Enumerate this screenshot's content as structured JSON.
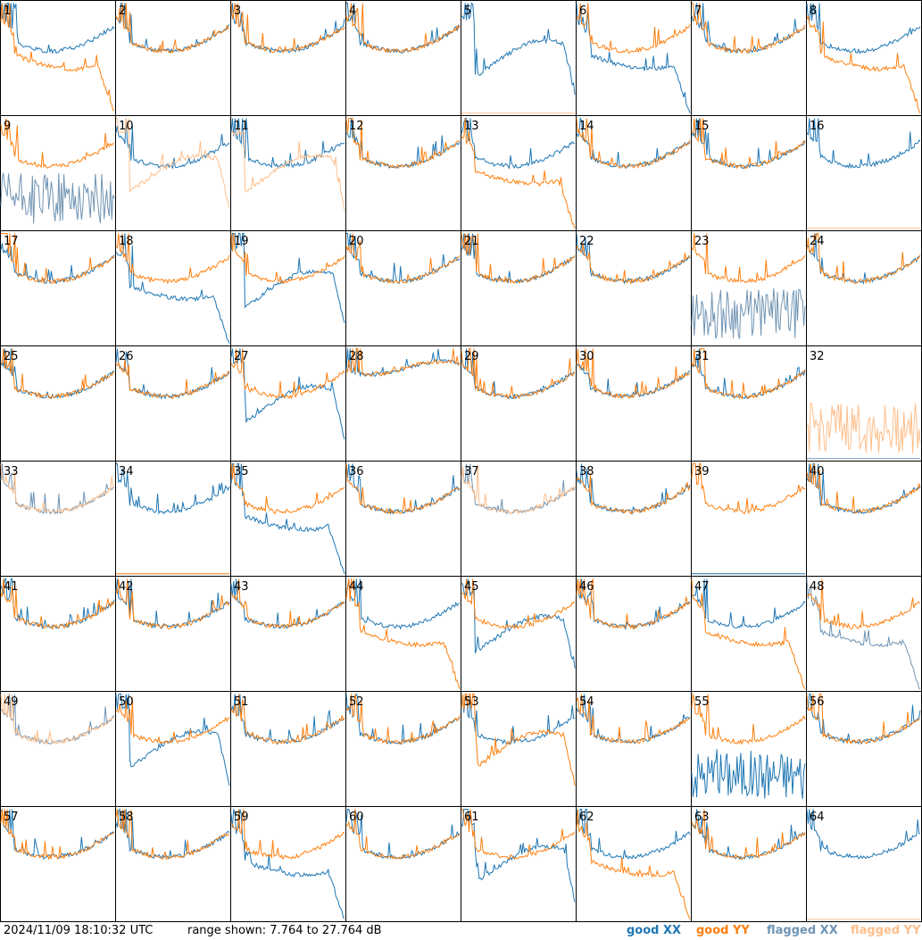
{
  "colors": {
    "good_xx": "#1f77b4",
    "good_yy": "#ff7f0e",
    "flagged_xx": "#7094b3",
    "flagged_yy": "#ffbe8a",
    "grid": "#000000",
    "background": "#ffffff"
  },
  "footer": {
    "timestamp": "2024/11/09 18:10:32 UTC",
    "range_text": "range shown: 7.764 to 27.764 dB"
  },
  "legend": [
    {
      "key": "good_xx",
      "word": "good",
      "pol": "XX"
    },
    {
      "key": "good_yy",
      "word": "good",
      "pol": "YY"
    },
    {
      "key": "flagged_xx",
      "word": "flagged",
      "pol": "XX"
    },
    {
      "key": "flagged_yy",
      "word": "flagged",
      "pol": "YY"
    }
  ],
  "chart_data": {
    "type": "line",
    "layout": "8x8 small multiples, one panel per antenna, shared y range",
    "ylim_db": [
      7.764,
      27.764
    ],
    "series_per_panel": [
      "XX",
      "YY"
    ],
    "panels": [
      {
        "id": "1",
        "shape_xx": "typical",
        "shape_yy": "droop",
        "status_xx": "good",
        "status_yy": "good"
      },
      {
        "id": "2",
        "shape_xx": "typical",
        "shape_yy": "typical",
        "status_xx": "good",
        "status_yy": "good"
      },
      {
        "id": "3",
        "shape_xx": "typical",
        "shape_yy": "typical",
        "status_xx": "good",
        "status_yy": "good"
      },
      {
        "id": "4",
        "shape_xx": "typical",
        "shape_yy": "typical",
        "status_xx": "good",
        "status_yy": "good"
      },
      {
        "id": "5",
        "shape_xx": "dip",
        "shape_yy": "dead",
        "status_xx": "good",
        "status_yy": "flagged"
      },
      {
        "id": "6",
        "shape_xx": "droop",
        "shape_yy": "typical",
        "status_xx": "good",
        "status_yy": "good"
      },
      {
        "id": "7",
        "shape_xx": "typical",
        "shape_yy": "typical",
        "status_xx": "good",
        "status_yy": "good"
      },
      {
        "id": "8",
        "shape_xx": "typical",
        "shape_yy": "droop",
        "status_xx": "good",
        "status_yy": "good"
      },
      {
        "id": "9",
        "shape_xx": "noise",
        "shape_yy": "typical",
        "status_xx": "flagged",
        "status_yy": "good"
      },
      {
        "id": "10",
        "shape_xx": "typical",
        "shape_yy": "dip",
        "status_xx": "good",
        "status_yy": "flagged"
      },
      {
        "id": "11",
        "shape_xx": "typical",
        "shape_yy": "dip",
        "status_xx": "good",
        "status_yy": "flagged"
      },
      {
        "id": "12",
        "shape_xx": "typical",
        "shape_yy": "typical",
        "status_xx": "good",
        "status_yy": "good"
      },
      {
        "id": "13",
        "shape_xx": "typical",
        "shape_yy": "droop",
        "status_xx": "good",
        "status_yy": "good"
      },
      {
        "id": "14",
        "shape_xx": "typical",
        "shape_yy": "typical",
        "status_xx": "good",
        "status_yy": "good"
      },
      {
        "id": "15",
        "shape_xx": "typical",
        "shape_yy": "typical",
        "status_xx": "good",
        "status_yy": "good"
      },
      {
        "id": "16",
        "shape_xx": "typical",
        "shape_yy": "dead",
        "status_xx": "good",
        "status_yy": "flagged"
      },
      {
        "id": "17",
        "shape_xx": "typical",
        "shape_yy": "typical",
        "status_xx": "good",
        "status_yy": "good"
      },
      {
        "id": "18",
        "shape_xx": "droop",
        "shape_yy": "typical",
        "status_xx": "good",
        "status_yy": "good"
      },
      {
        "id": "19",
        "shape_xx": "dip",
        "shape_yy": "typical",
        "status_xx": "good",
        "status_yy": "good"
      },
      {
        "id": "20",
        "shape_xx": "typical",
        "shape_yy": "typical",
        "status_xx": "good",
        "status_yy": "good"
      },
      {
        "id": "21",
        "shape_xx": "typical",
        "shape_yy": "typical",
        "status_xx": "good",
        "status_yy": "good"
      },
      {
        "id": "22",
        "shape_xx": "typical",
        "shape_yy": "typical",
        "status_xx": "good",
        "status_yy": "good"
      },
      {
        "id": "23",
        "shape_xx": "noise",
        "shape_yy": "typical",
        "status_xx": "flagged",
        "status_yy": "good"
      },
      {
        "id": "24",
        "shape_xx": "typical",
        "shape_yy": "typical",
        "status_xx": "good",
        "status_yy": "good"
      },
      {
        "id": "25",
        "shape_xx": "typical",
        "shape_yy": "typical",
        "status_xx": "good",
        "status_yy": "good"
      },
      {
        "id": "26",
        "shape_xx": "typical",
        "shape_yy": "typical",
        "status_xx": "good",
        "status_yy": "good"
      },
      {
        "id": "27",
        "shape_xx": "dip",
        "shape_yy": "typical",
        "status_xx": "good",
        "status_yy": "good"
      },
      {
        "id": "28",
        "shape_xx": "flat",
        "shape_yy": "flat",
        "status_xx": "good",
        "status_yy": "good"
      },
      {
        "id": "29",
        "shape_xx": "typical",
        "shape_yy": "typical",
        "status_xx": "good",
        "status_yy": "good"
      },
      {
        "id": "30",
        "shape_xx": "typical",
        "shape_yy": "typical",
        "status_xx": "good",
        "status_yy": "good"
      },
      {
        "id": "31",
        "shape_xx": "typical",
        "shape_yy": "typical",
        "status_xx": "good",
        "status_yy": "good"
      },
      {
        "id": "32",
        "shape_xx": "dead",
        "shape_yy": "noise",
        "status_xx": "flagged",
        "status_yy": "flagged"
      },
      {
        "id": "33",
        "shape_xx": "typical",
        "shape_yy": "typical",
        "status_xx": "flagged",
        "status_yy": "flagged"
      },
      {
        "id": "34",
        "shape_xx": "typical",
        "shape_yy": "dead",
        "status_xx": "good",
        "status_yy": "good"
      },
      {
        "id": "35",
        "shape_xx": "droop",
        "shape_yy": "typical",
        "status_xx": "good",
        "status_yy": "good"
      },
      {
        "id": "36",
        "shape_xx": "typical",
        "shape_yy": "typical",
        "status_xx": "good",
        "status_yy": "good"
      },
      {
        "id": "37",
        "shape_xx": "typical",
        "shape_yy": "typical",
        "status_xx": "flagged",
        "status_yy": "flagged"
      },
      {
        "id": "38",
        "shape_xx": "typical",
        "shape_yy": "typical",
        "status_xx": "good",
        "status_yy": "good"
      },
      {
        "id": "39",
        "shape_xx": "dead",
        "shape_yy": "typical",
        "status_xx": "good",
        "status_yy": "good"
      },
      {
        "id": "40",
        "shape_xx": "typical",
        "shape_yy": "typical",
        "status_xx": "good",
        "status_yy": "good"
      },
      {
        "id": "41",
        "shape_xx": "typical",
        "shape_yy": "typical",
        "status_xx": "good",
        "status_yy": "good"
      },
      {
        "id": "42",
        "shape_xx": "typical",
        "shape_yy": "typical",
        "status_xx": "good",
        "status_yy": "good"
      },
      {
        "id": "43",
        "shape_xx": "typical",
        "shape_yy": "typical",
        "status_xx": "good",
        "status_yy": "good"
      },
      {
        "id": "44",
        "shape_xx": "typical",
        "shape_yy": "droop",
        "status_xx": "good",
        "status_yy": "good"
      },
      {
        "id": "45",
        "shape_xx": "dip",
        "shape_yy": "typical",
        "status_xx": "good",
        "status_yy": "good"
      },
      {
        "id": "46",
        "shape_xx": "typical",
        "shape_yy": "typical",
        "status_xx": "good",
        "status_yy": "good"
      },
      {
        "id": "47",
        "shape_xx": "typical",
        "shape_yy": "droop",
        "status_xx": "good",
        "status_yy": "good"
      },
      {
        "id": "48",
        "shape_xx": "droop",
        "shape_yy": "typical",
        "status_xx": "flagged",
        "status_yy": "good"
      },
      {
        "id": "49",
        "shape_xx": "typical",
        "shape_yy": "typical",
        "status_xx": "flagged",
        "status_yy": "flagged"
      },
      {
        "id": "50",
        "shape_xx": "dip",
        "shape_yy": "typical",
        "status_xx": "good",
        "status_yy": "good"
      },
      {
        "id": "51",
        "shape_xx": "typical",
        "shape_yy": "typical",
        "status_xx": "good",
        "status_yy": "good"
      },
      {
        "id": "52",
        "shape_xx": "typical",
        "shape_yy": "typical",
        "status_xx": "good",
        "status_yy": "good"
      },
      {
        "id": "53",
        "shape_xx": "typical",
        "shape_yy": "dip",
        "status_xx": "good",
        "status_yy": "good"
      },
      {
        "id": "54",
        "shape_xx": "typical",
        "shape_yy": "typical",
        "status_xx": "good",
        "status_yy": "good"
      },
      {
        "id": "55",
        "shape_xx": "noise",
        "shape_yy": "typical",
        "status_xx": "good",
        "status_yy": "good"
      },
      {
        "id": "56",
        "shape_xx": "typical",
        "shape_yy": "typical",
        "status_xx": "good",
        "status_yy": "good"
      },
      {
        "id": "57",
        "shape_xx": "typical",
        "shape_yy": "typical",
        "status_xx": "good",
        "status_yy": "good"
      },
      {
        "id": "58",
        "shape_xx": "typical",
        "shape_yy": "typical",
        "status_xx": "good",
        "status_yy": "good"
      },
      {
        "id": "59",
        "shape_xx": "droop",
        "shape_yy": "typical",
        "status_xx": "good",
        "status_yy": "good"
      },
      {
        "id": "60",
        "shape_xx": "typical",
        "shape_yy": "typical",
        "status_xx": "good",
        "status_yy": "good"
      },
      {
        "id": "61",
        "shape_xx": "dip",
        "shape_yy": "typical",
        "status_xx": "good",
        "status_yy": "good"
      },
      {
        "id": "62",
        "shape_xx": "typical",
        "shape_yy": "droop",
        "status_xx": "good",
        "status_yy": "good"
      },
      {
        "id": "63",
        "shape_xx": "typical",
        "shape_yy": "typical",
        "status_xx": "good",
        "status_yy": "good"
      },
      {
        "id": "64",
        "shape_xx": "typical",
        "shape_yy": "dead",
        "status_xx": "good",
        "status_yy": "flagged"
      }
    ]
  }
}
